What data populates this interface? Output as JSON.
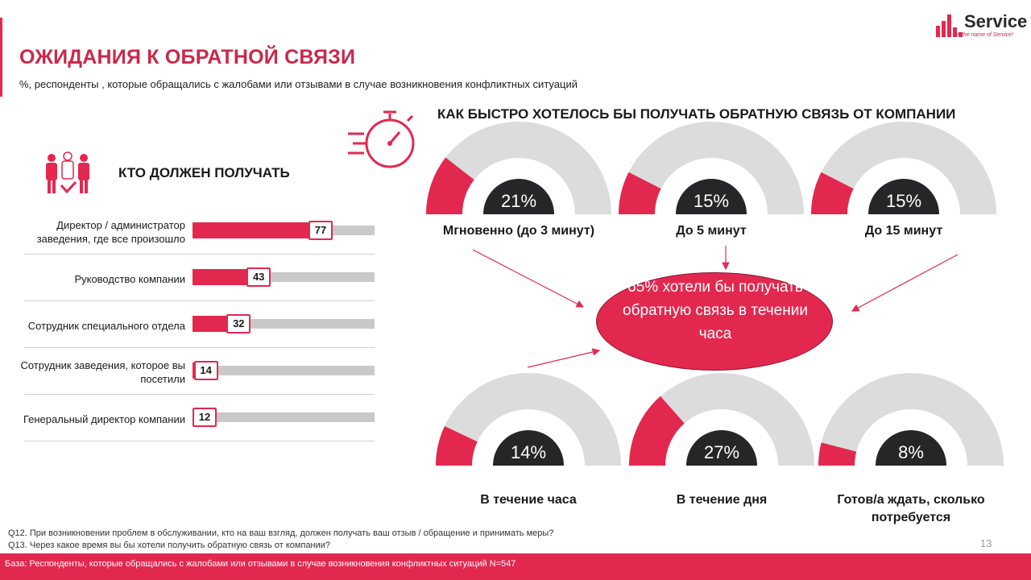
{
  "header": {
    "title": "ОЖИДАНИЯ К ОБРАТНОЙ СВЯЗИ",
    "subtitle": "%, респонденты , которые обращались с жалобами или отзывами в случае возникновения конфликтных ситуаций"
  },
  "logo": {
    "name": "Service",
    "tagline": "In the name of Service!"
  },
  "colors": {
    "accent": "#e3284f",
    "track": "#c9c9c9",
    "gauge_track": "#dcdcdc",
    "badge": "#262628"
  },
  "left_section": {
    "title": "КТО ДОЛЖЕН ПОЛУЧАТЬ",
    "icon": "people-group-icon"
  },
  "right_section": {
    "title": "КАК БЫСТРО ХОТЕЛОСЬ БЫ ПОЛУЧАТЬ ОБРАТНУЮ СВЯЗЬ ОТ КОМПАНИИ",
    "icon": "stopwatch-icon"
  },
  "summary": {
    "text": "65% хотели бы получать обратную связь в течении часа"
  },
  "chart_data": [
    {
      "type": "bar",
      "orientation": "horizontal",
      "title": "КТО ДОЛЖЕН ПОЛУЧАТЬ",
      "categories": [
        "Директор / администратор заведения, где все произошло",
        "Руководство компании",
        "Сотрудник специального отдела",
        "Сотрудник заведения, которое вы посетили",
        "Генеральный директор компании"
      ],
      "values": [
        77,
        43,
        32,
        14,
        12
      ],
      "value_labels": [
        "77",
        "43",
        "32",
        "14",
        "12"
      ],
      "xlim": [
        0,
        100
      ]
    },
    {
      "type": "gauge",
      "title": "КАК БЫСТРО ХОТЕЛОСЬ БЫ ПОЛУЧАТЬ ОБРАТНУЮ СВЯЗЬ ОТ КОМПАНИИ",
      "categories": [
        "Мгновенно (до 3 минут)",
        "До 5 минут",
        "До 15 минут",
        "В течение часа",
        "В течение дня",
        "Готов/а ждать, сколько потребуется"
      ],
      "values": [
        21,
        15,
        15,
        14,
        27,
        8
      ],
      "value_labels": [
        "21%",
        "15%",
        "15%",
        "14%",
        "27%",
        "8%"
      ],
      "range": [
        0,
        100
      ]
    }
  ],
  "footnotes": {
    "q12": "Q12.  При возникновении  проблем в обслуживании, кто на ваш взгляд, должен получать ваш отзыв / обращение и принимать меры?",
    "q13": "Q13.  Через какое время вы бы хотели получить обратную связь от компании?",
    "page": "13",
    "base": "База: Респонденты, которые обращались с жалобами или отзывами в случае возникновения конфликтных ситуаций N=547"
  }
}
